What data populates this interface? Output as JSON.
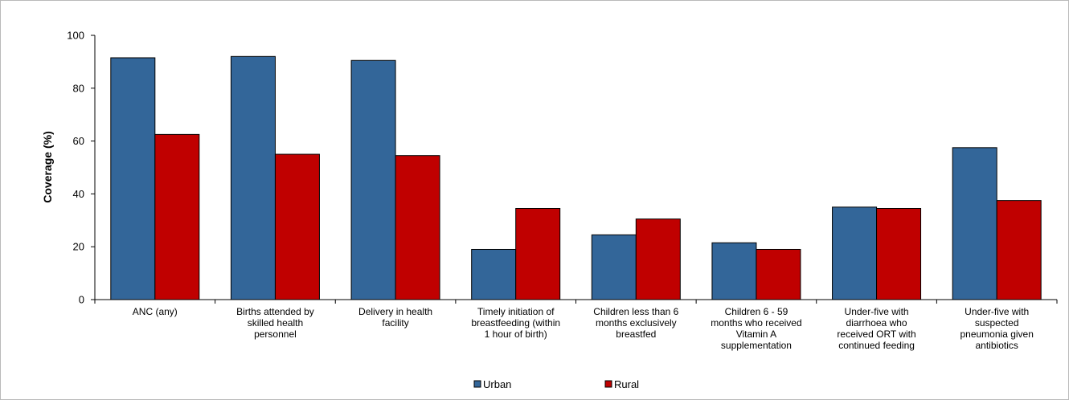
{
  "chart_data": {
    "type": "bar",
    "ylabel": "Coverage (%)",
    "xlabel": "",
    "ylim": [
      0,
      100
    ],
    "yticks": [
      0,
      20,
      40,
      60,
      80,
      100
    ],
    "grid": false,
    "legend_position": "bottom",
    "categories": [
      [
        "ANC (any)"
      ],
      [
        "Births attended by",
        "skilled health",
        "personnel"
      ],
      [
        "Delivery in health",
        "facility"
      ],
      [
        "Timely initiation of",
        "breastfeeding (within",
        "1 hour of birth)"
      ],
      [
        "Children less than 6",
        "months exclusively",
        "breastfed"
      ],
      [
        "Children 6 - 59",
        "months who received",
        "Vitamin A",
        "supplementation"
      ],
      [
        "Under-five with",
        "diarrhoea who",
        "received ORT with",
        "continued feeding"
      ],
      [
        "Under-five with",
        "suspected",
        "pneumonia given",
        "antibiotics"
      ]
    ],
    "series": [
      {
        "name": "Urban",
        "color": "#336699",
        "values": [
          91.5,
          92,
          90.5,
          19,
          24.5,
          21.5,
          35,
          57.5
        ]
      },
      {
        "name": "Rural",
        "color": "#c00000",
        "values": [
          62.5,
          55,
          54.5,
          34.5,
          30.5,
          19,
          34.5,
          37.5
        ]
      }
    ]
  }
}
